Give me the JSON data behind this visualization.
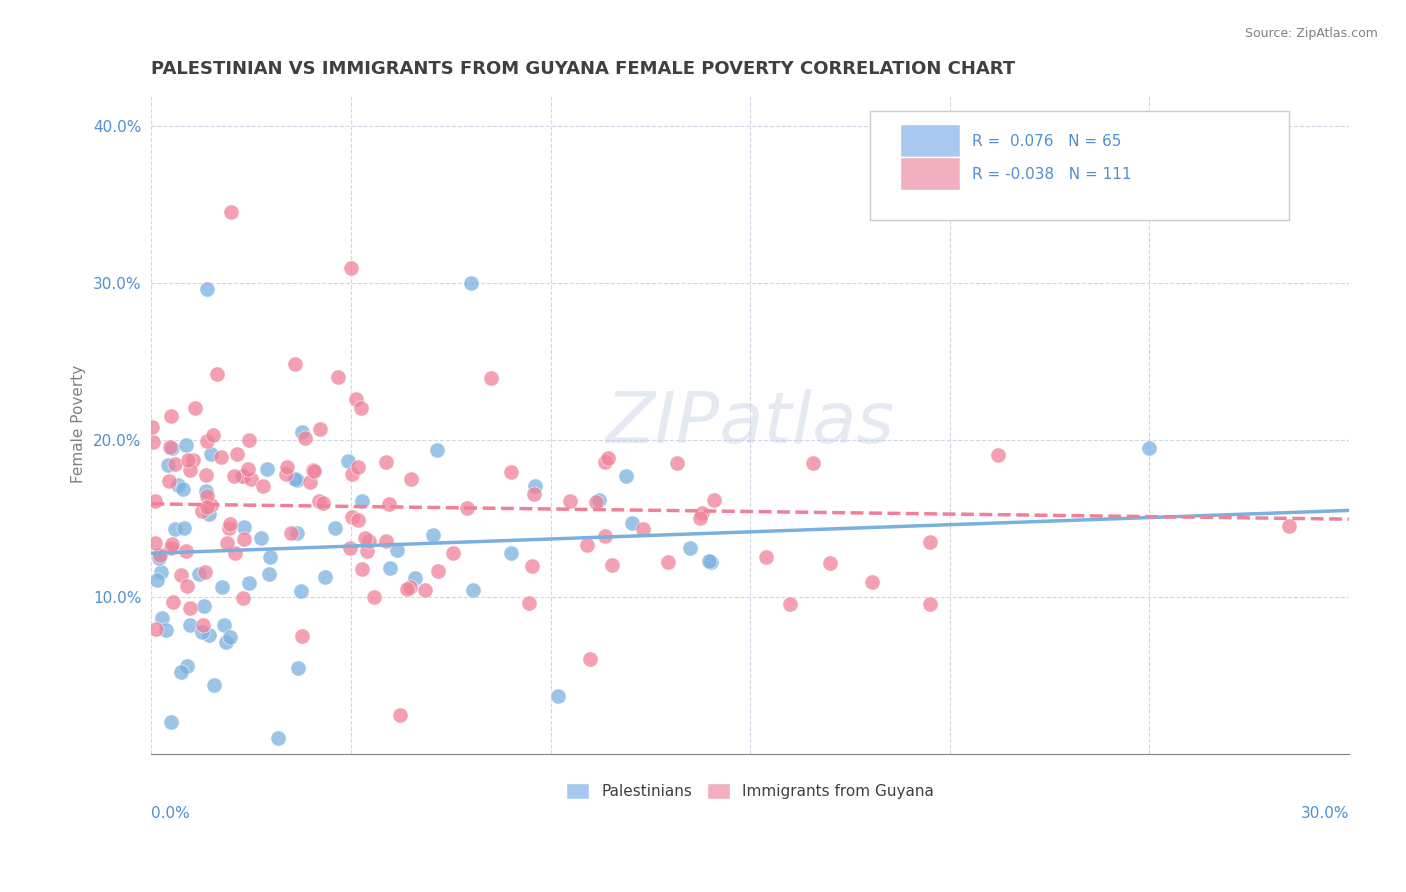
{
  "title": "PALESTINIAN VS IMMIGRANTS FROM GUYANA FEMALE POVERTY CORRELATION CHART",
  "source": "Source: ZipAtlas.com",
  "ylabel": "Female Poverty",
  "xlim": [
    0.0,
    0.3
  ],
  "ylim": [
    0.0,
    0.42
  ],
  "series1_name": "Palestinians",
  "series1_color": "#7ab0e0",
  "series1_legend_color": "#a8c8f0",
  "series1_R": 0.076,
  "series1_N": 65,
  "series2_name": "Immigrants from Guyana",
  "series2_color": "#f08098",
  "series2_legend_color": "#f0b0c0",
  "series2_R": -0.038,
  "series2_N": 111,
  "watermark": "ZIPatlas",
  "background_color": "#ffffff",
  "grid_color": "#d0d8e8",
  "title_color": "#404040",
  "axis_label_color": "#5090d0"
}
